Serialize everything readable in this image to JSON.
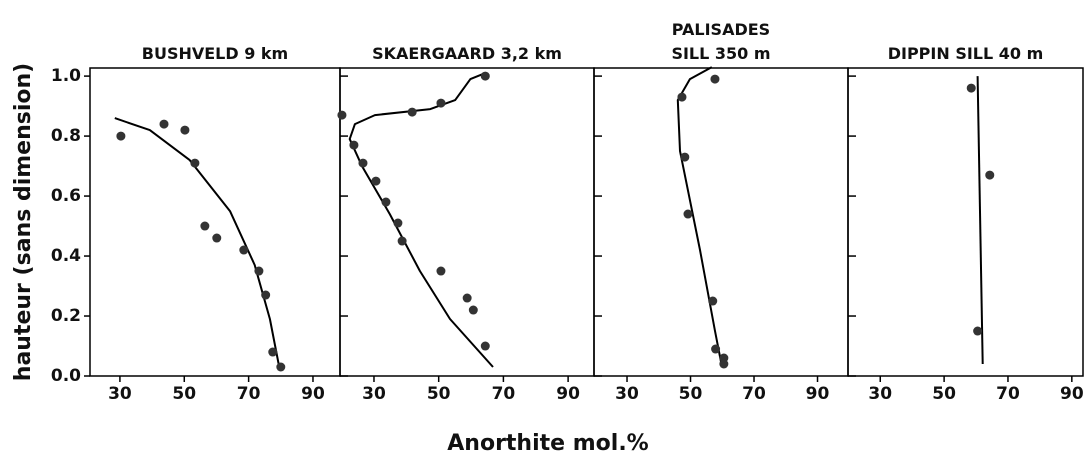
{
  "ylabel": "hauteur (sans dimension)",
  "xlabel": "Anorthite mol.%",
  "chart_data": [
    {
      "type": "scatter",
      "title": "BUSHVELD 9 km",
      "xlim": [
        20.7,
        98.4
      ],
      "ylim": [
        0,
        1.027
      ],
      "xticks": [
        30,
        50,
        70,
        90
      ],
      "yticks": [
        {
          "value": 0,
          "label": "0.0"
        },
        0.2,
        0.4,
        0.6,
        0.8,
        {
          "value": 1,
          "label": "1.0"
        }
      ],
      "point_color": "#333333",
      "line_color": "#000000",
      "points": {
        "x": [
          30.3,
          43.7,
          50.2,
          53.3,
          56.4,
          60.1,
          68.5,
          73.2,
          75.3,
          77.5,
          80.0
        ],
        "y": [
          0.8,
          0.84,
          0.82,
          0.71,
          0.5,
          0.46,
          0.42,
          0.35,
          0.27,
          0.08,
          0.03
        ]
      },
      "curve": {
        "x": [
          28.4,
          39.3,
          51.7,
          64.2,
          71.9,
          76.6,
          79.7
        ],
        "y": [
          0.86,
          0.82,
          0.72,
          0.55,
          0.37,
          0.19,
          0.02
        ]
      }
    },
    {
      "type": "scatter",
      "title": "SKAERGAARD 3,2 km",
      "xlim": [
        19.5,
        98.0
      ],
      "ylim": [
        0,
        1.027
      ],
      "xticks": [
        30,
        50,
        70,
        90
      ],
      "yticks": [
        0,
        0.2,
        0.4,
        0.6,
        0.8,
        1
      ],
      "point_color": "#333333",
      "line_color": "#000000",
      "points": {
        "x": [
          20.1,
          23.8,
          26.6,
          30.6,
          33.7,
          37.4,
          38.7,
          50.7,
          58.8,
          60.7,
          64.4,
          41.8,
          50.7,
          64.4
        ],
        "y": [
          0.87,
          0.77,
          0.71,
          0.65,
          0.58,
          0.51,
          0.45,
          0.35,
          0.26,
          0.22,
          0.1,
          0.88,
          0.91,
          1.0
        ]
      },
      "curve": {
        "x": [
          64.4,
          59.8,
          55.1,
          47.4,
          30.3,
          24.1,
          22.5,
          26.3,
          34.9,
          44.2,
          53.5,
          66.8
        ],
        "y": [
          1.01,
          0.99,
          0.92,
          0.89,
          0.87,
          0.84,
          0.79,
          0.7,
          0.54,
          0.35,
          0.19,
          0.03
        ]
      }
    },
    {
      "type": "scatter",
      "title": "PALISADES\nSILL 350 m",
      "xlim": [
        19.6,
        99.6
      ],
      "ylim": [
        0,
        1.027
      ],
      "xticks": [
        30,
        50,
        70,
        90
      ],
      "yticks": [
        0,
        0.2,
        0.4,
        0.6,
        0.8,
        1
      ],
      "point_color": "#333333",
      "line_color": "#000000",
      "points": {
        "x": [
          57.7,
          47.3,
          48.2,
          49.2,
          57.0,
          57.9,
          60.5,
          60.5
        ],
        "y": [
          0.99,
          0.93,
          0.73,
          0.54,
          0.25,
          0.09,
          0.06,
          0.04
        ]
      },
      "curve": {
        "x": [
          56.7,
          49.8,
          46.0,
          46.7,
          53.0,
          57.7,
          59.9
        ],
        "y": [
          1.03,
          0.99,
          0.92,
          0.75,
          0.42,
          0.15,
          0.03
        ]
      }
    },
    {
      "type": "scatter",
      "title": "DIPPIN SILL 40 m",
      "xlim": [
        19.9,
        93.5
      ],
      "ylim": [
        0,
        1.027
      ],
      "xticks": [
        30,
        50,
        70,
        90
      ],
      "yticks": [
        0,
        0.2,
        0.4,
        0.6,
        0.8,
        1
      ],
      "point_color": "#333333",
      "line_color": "#000000",
      "points": {
        "x": [
          58.5,
          64.3,
          60.5
        ],
        "y": [
          0.96,
          0.67,
          0.15
        ]
      },
      "curve": {
        "x": [
          60.5,
          62.1
        ],
        "y": [
          1.0,
          0.04
        ]
      }
    }
  ]
}
